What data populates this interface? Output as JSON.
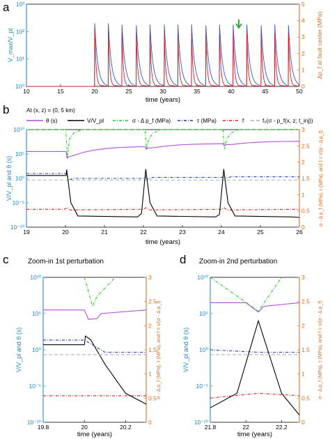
{
  "panels": {
    "a": {
      "letter": "a",
      "xlabel": "time (years)",
      "ylabel_left": "V_max/V_pl",
      "ylabel_right": "Δp_f at fault center (MPa)"
    },
    "b": {
      "letter": "b",
      "annotation": "At (x, z) = (0, 5 km)",
      "xlabel": "time (years)",
      "ylabel_left": "V/V_pl and θ (s)",
      "ylabel_right": "σ - Δ p_f (MPa), τ (MPa), and f = τ/(σ - Δ p_f)"
    },
    "c": {
      "letter": "c",
      "title": "Zoom-in 1st perturbation",
      "xlabel": "time (years)",
      "ylabel_left": "V/V_pl and θ (s)",
      "ylabel_right": "σ - Δ p_f (MPa), τ (MPa), and f = τ/(σ - Δ p_f)"
    },
    "d": {
      "letter": "d",
      "title": "Zoom-in 2nd perturbation",
      "xlabel": "time (years)",
      "ylabel_left": "V/V_pl and θ (s)",
      "ylabel_right": "σ - Δ p_f (MPa), τ (MPa), and f = τ/(σ - Δ p_f)"
    }
  },
  "legend": {
    "theta": "θ (s)",
    "vvpl": "V/V_pl",
    "sigma": "σ - Δ p_f (MPa)",
    "tau": "τ (MPa)",
    "f": "f",
    "f0": "f₀(σ - p_f(x, z; t_inj))"
  },
  "colors": {
    "vmax": "#3a4fd0",
    "pf": "#d81b1b",
    "theta": "#b44be0",
    "vvpl": "#000000",
    "sigma": "#22cc22",
    "tau": "#1a3fb8",
    "f": "#dd1b1b",
    "f0": "#b0b0b0",
    "left_axis": "#1e88c8",
    "right_axis": "#e06a1f",
    "arrow": "#3aa63a"
  },
  "chart_data": [
    {
      "panel": "a",
      "type": "line",
      "xlabel": "time (years)",
      "ylabel": "V_max/V_pl",
      "ylabel_right": "Δp_f at fault center (MPa)",
      "xlim": [
        10,
        50
      ],
      "ylim_left": [
        1,
        1000
      ],
      "yscale_left": "log",
      "ylim_right": [
        0,
        5
      ],
      "x_ticks": [
        10,
        15,
        20,
        25,
        30,
        35,
        40,
        45,
        50
      ],
      "y_ticks_right": [
        0,
        1,
        2,
        3,
        4,
        5
      ],
      "series": [
        {
          "axis": "left",
          "color": "#3a4fd0",
          "baseline": 1,
          "spike_times": [
            20.0,
            22.0,
            24.0,
            26.1,
            28.1,
            30.2,
            32.2,
            34.2,
            36.3,
            38.3,
            40.3,
            42.3,
            44.4,
            46.4,
            48.4
          ],
          "spike_peaks": [
            200,
            200,
            180,
            170,
            180,
            180,
            180,
            180,
            170,
            180,
            180,
            180,
            170,
            180,
            170
          ]
        },
        {
          "axis": "right",
          "color": "#d81b1b",
          "baseline": 0,
          "spike_times": [
            20.0,
            22.0,
            24.0,
            26.1,
            28.1,
            30.2,
            32.2,
            34.2,
            36.3,
            38.3,
            40.3,
            42.3,
            44.4,
            46.4,
            48.4
          ],
          "spike_peaks": [
            3.55,
            3.35,
            3.3,
            3.2,
            3.2,
            3.2,
            3.2,
            3.2,
            3.15,
            3.2,
            3.2,
            3.2,
            3.2,
            3.2,
            3.2
          ]
        }
      ],
      "marker_arrow_x": 40.3
    },
    {
      "panel": "b",
      "type": "line",
      "xlabel": "time (years)",
      "xlim": [
        19,
        26
      ],
      "ylim_left": [
        1e-10,
        10000000000.0
      ],
      "yscale_left": "log",
      "ylim_right": [
        0,
        3
      ],
      "x_ticks": [
        19,
        20,
        21,
        22,
        23,
        24,
        25,
        26
      ],
      "y_ticks_right": [
        0,
        0.5,
        1,
        1.5,
        2,
        2.5,
        3
      ],
      "events": [
        20.02,
        22.05,
        24.05
      ],
      "series": [
        {
          "name": "θ (s)",
          "axis": "left",
          "color": "#b44be0",
          "pre_event_log10": [
            5.5,
            6.5,
            7.1,
            7.6
          ],
          "dip_log10": [
            4.2,
            6.0,
            6.7
          ]
        },
        {
          "name": "V/V_pl",
          "axis": "left",
          "color": "#000000",
          "before_log10": [
            0.6,
            -7.6,
            -7.8
          ],
          "peak_log10": [
            1.7,
            1.9,
            1.9
          ],
          "after_log10": -7.7
        },
        {
          "name": "σ - Δ p_f (MPa)",
          "axis": "right",
          "color": "#22cc22",
          "base": 3.0,
          "dip": [
            2.1,
            2.4,
            2.4
          ]
        },
        {
          "name": "τ (MPa)",
          "axis": "right",
          "color": "#1a3fb8",
          "before": [
            1.65,
            1.5,
            1.53,
            1.55
          ],
          "peak": [
            1.78,
            1.6,
            1.6
          ]
        },
        {
          "name": "f",
          "axis": "right",
          "color": "#dd1b1b",
          "before": 0.55,
          "bump": 0.6
        },
        {
          "name": "f₀(σ - p_f(x, z; t_inj))",
          "axis": "right",
          "color": "#b0b0b0",
          "value": 1.45
        }
      ]
    },
    {
      "panel": "c",
      "type": "line",
      "xlabel": "time (years)",
      "xlim": [
        19.8,
        20.3
      ],
      "ylim_left": [
        1e-10,
        10000000000.0
      ],
      "yscale_left": "log",
      "ylim_right": [
        0,
        3
      ],
      "x_ticks": [
        19.8,
        20,
        20.2
      ],
      "y_ticks_right": [
        0,
        0.5,
        1,
        1.5,
        2,
        2.5,
        3
      ],
      "series": [
        {
          "name": "θ (s)",
          "axis": "left",
          "color": "#b44be0",
          "points": [
            [
              19.8,
              5.5
            ],
            [
              20.0,
              5.5
            ],
            [
              20.02,
              4.2
            ],
            [
              20.06,
              4.3
            ],
            [
              20.08,
              5.0
            ],
            [
              20.3,
              5.5
            ]
          ]
        },
        {
          "name": "V/V_pl",
          "axis": "left",
          "color": "#000000",
          "points": [
            [
              19.8,
              0.7
            ],
            [
              20.0,
              0.7
            ],
            [
              20.005,
              1.9
            ],
            [
              20.03,
              1.4
            ],
            [
              20.1,
              -2
            ],
            [
              20.2,
              -6
            ],
            [
              20.3,
              -7.5
            ]
          ]
        },
        {
          "name": "σ - Δ p_f (MPa)",
          "axis": "right",
          "color": "#22cc22",
          "points": [
            [
              20.0,
              3.0
            ],
            [
              20.04,
              2.4
            ],
            [
              20.06,
              2.6
            ],
            [
              20.15,
              3.0
            ]
          ]
        },
        {
          "name": "τ (MPa)",
          "axis": "right",
          "color": "#1a3fb8",
          "points": [
            [
              19.8,
              1.7
            ],
            [
              20.0,
              1.7
            ],
            [
              20.1,
              1.45
            ],
            [
              20.3,
              1.45
            ]
          ]
        },
        {
          "name": "f",
          "axis": "right",
          "color": "#dd1b1b",
          "points": [
            [
              19.8,
              0.55
            ],
            [
              20.3,
              0.55
            ]
          ]
        },
        {
          "name": "f₀(σ - p_f(x, z; t_inj))",
          "axis": "right",
          "color": "#b0b0b0",
          "points": [
            [
              19.8,
              1.4
            ],
            [
              20.3,
              1.4
            ]
          ]
        }
      ]
    },
    {
      "panel": "d",
      "type": "line",
      "xlabel": "time (years)",
      "xlim": [
        21.8,
        22.3
      ],
      "ylim_left": [
        1e-10,
        10000000000.0
      ],
      "yscale_left": "log",
      "ylim_right": [
        0,
        3
      ],
      "x_ticks": [
        21.8,
        22,
        22.2
      ],
      "y_ticks_right": [
        0,
        0.5,
        1,
        1.5,
        2,
        2.5,
        3
      ],
      "series": [
        {
          "name": "θ (s)",
          "axis": "left",
          "color": "#b44be0",
          "points": [
            [
              21.8,
              6.5
            ],
            [
              22.0,
              6.5
            ],
            [
              22.07,
              5.2
            ],
            [
              22.1,
              6.0
            ],
            [
              22.3,
              6.5
            ]
          ]
        },
        {
          "name": "V/V_pl",
          "axis": "left",
          "color": "#000000",
          "points": [
            [
              21.8,
              -8
            ],
            [
              21.95,
              -6
            ],
            [
              22.07,
              4
            ],
            [
              22.2,
              -6
            ],
            [
              22.3,
              -9
            ]
          ]
        },
        {
          "name": "σ - Δ p_f (MPa)",
          "axis": "right",
          "color": "#22cc22",
          "points": [
            [
              21.8,
              3.0
            ],
            [
              22.07,
              2.3
            ],
            [
              22.2,
              3.0
            ]
          ]
        },
        {
          "name": "τ (MPa)",
          "axis": "right",
          "color": "#1a3fb8",
          "points": [
            [
              21.8,
              1.5
            ],
            [
              22.07,
              1.45
            ],
            [
              22.3,
              1.45
            ]
          ]
        },
        {
          "name": "f",
          "axis": "right",
          "color": "#dd1b1b",
          "points": [
            [
              21.8,
              0.5
            ],
            [
              22.07,
              0.6
            ],
            [
              22.3,
              0.55
            ]
          ]
        },
        {
          "name": "f₀(σ - p_f(x, z; t_inj))",
          "axis": "right",
          "color": "#b0b0b0",
          "points": [
            [
              21.8,
              1.4
            ],
            [
              22.3,
              1.4
            ]
          ]
        }
      ]
    }
  ]
}
